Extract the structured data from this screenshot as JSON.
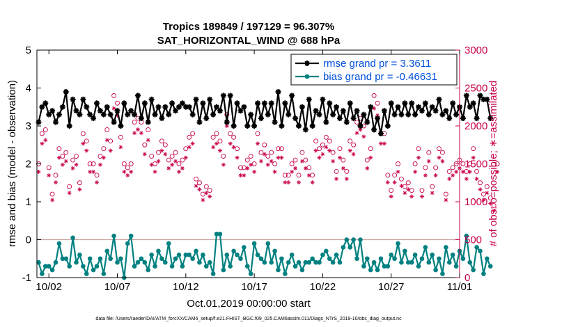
{
  "chart_data": {
    "type": "line",
    "title": "Tropics 189849 / 197129 = 96.307%",
    "subtitle": "SAT_HORIZONTAL_WIND @ 688 hPa",
    "xlabel": "Oct.01,2019 00:00:00 start",
    "ylabel_left": "rmse and bias (model - observation)",
    "ylabel_right": "# of obs: o=possible; ∗=assimilated",
    "footnote": "data file: /Users/raeder/DAI/ATM_forcXX/CAM6_setup/f.e21.FHIST_BGC.f09_025.CAM6assim.011/Diags_NTrS_2019-10/obs_diag_output.nc",
    "xlim": [
      1.125,
      32.0
    ],
    "ylim_left": [
      -1,
      5
    ],
    "ylim_right": [
      0,
      3000
    ],
    "x_ticks": [
      2,
      7,
      12,
      17,
      22,
      27,
      32
    ],
    "x_tick_labels": [
      "10/02",
      "10/07",
      "10/12",
      "10/17",
      "10/22",
      "10/27",
      "11/01"
    ],
    "y_ticks_left": [
      "-1",
      "0",
      "1",
      "2",
      "3",
      "4",
      "5"
    ],
    "y_ticks_right": [
      "0",
      "500",
      "1000",
      "1500",
      "2000",
      "2500",
      "3000"
    ],
    "zero_line": 0,
    "x_start": 1.25,
    "x_step": 0.25,
    "series": [
      {
        "name": "rmse grand pr = 3.3611",
        "axis": "left",
        "color": "#000000",
        "marker": "asterisk",
        "values": [
          3.1,
          3.5,
          3.6,
          3.3,
          3.4,
          3.1,
          3.3,
          3.5,
          3.9,
          3.0,
          3.7,
          3.4,
          3.3,
          3.7,
          3.5,
          3.3,
          3.2,
          3.6,
          3.4,
          3.3,
          3.5,
          3.3,
          3.1,
          3.4,
          3.0,
          3.6,
          3.3,
          3.4,
          3.3,
          3.8,
          3.2,
          3.6,
          3.1,
          3.7,
          3.3,
          3.5,
          3.2,
          3.5,
          3.3,
          3.6,
          3.4,
          3.5,
          3.6,
          3.5,
          3.5,
          3.3,
          3.7,
          3.1,
          3.6,
          3.2,
          3.7,
          3.3,
          3.5,
          3.4,
          3.8,
          3.1,
          3.8,
          3.0,
          3.6,
          3.4,
          3.5,
          3.0,
          3.3,
          3.0,
          3.6,
          3.2,
          3.6,
          3.3,
          3.6,
          3.1,
          3.9,
          3.0,
          3.6,
          3.3,
          3.8,
          3.2,
          3.0,
          3.5,
          2.9,
          3.7,
          3.0,
          3.4,
          3.3,
          3.7,
          3.1,
          3.6,
          3.3,
          3.5,
          3.2,
          3.4,
          3.1,
          3.6,
          3.2,
          3.4,
          3.0,
          3.3,
          3.1,
          3.5,
          2.9,
          3.2,
          2.8,
          3.4,
          3.0,
          3.6,
          3.3,
          3.5,
          3.3,
          3.6,
          3.3,
          3.6,
          3.3,
          3.5,
          3.4,
          3.6,
          3.3,
          3.5,
          3.4,
          3.7,
          3.3,
          3.4,
          3.2,
          3.6,
          3.3,
          3.5,
          3.2,
          3.8,
          3.5,
          3.6,
          3.2,
          3.8,
          3.7,
          3.7,
          3.2
        ]
      },
      {
        "name": "bias grand pr = -0.46631",
        "axis": "left",
        "color": "#008080",
        "marker": "circle",
        "values": [
          -0.6,
          -0.9,
          -0.7,
          -0.7,
          -0.8,
          -0.6,
          -0.1,
          -0.5,
          -0.5,
          -0.7,
          0.05,
          -0.6,
          -0.4,
          -0.7,
          -0.9,
          -0.5,
          -0.8,
          -0.7,
          -0.5,
          -0.9,
          -0.3,
          -0.5,
          0.1,
          -0.6,
          -0.5,
          -1.0,
          -0.1,
          0.1,
          -0.7,
          -0.6,
          -0.5,
          -0.6,
          -0.8,
          -0.4,
          -0.7,
          -0.3,
          -0.5,
          -0.6,
          -0.1,
          -0.7,
          -0.5,
          -0.4,
          -0.7,
          -0.4,
          -0.4,
          -0.5,
          -0.3,
          -0.6,
          -0.4,
          -0.7,
          -0.6,
          -0.9,
          0.15,
          0.15,
          -0.8,
          -0.4,
          -0.7,
          -0.3,
          -0.4,
          -0.5,
          -0.2,
          -0.7,
          -0.9,
          -0.1,
          -0.4,
          -0.5,
          -0.6,
          -0.1,
          -0.6,
          -0.3,
          -0.8,
          -0.5,
          -0.9,
          -0.6,
          -0.4,
          -0.7,
          -0.6,
          -0.8,
          -0.6,
          -0.6,
          -0.5,
          -0.6,
          -0.6,
          -0.4,
          -0.3,
          -0.5,
          -0.6,
          -0.4,
          -0.6,
          -0.2,
          0.0,
          -0.2,
          0.0,
          -0.5,
          0.0,
          -0.7,
          -0.5,
          -0.8,
          -0.6,
          -0.8,
          -0.5,
          -0.7,
          -0.7,
          -0.4,
          -0.5,
          -0.1,
          -0.6,
          -0.3,
          -0.6,
          -0.6,
          -0.4,
          -0.7,
          -0.5,
          -0.2,
          -0.6,
          -0.4,
          -0.8,
          -0.5,
          -0.9,
          -0.2,
          -0.6,
          -0.4,
          -0.7,
          -0.3,
          -0.5,
          0.1,
          -0.6,
          -0.8,
          -0.2,
          -0.3,
          -0.9,
          -0.5,
          -0.7
        ]
      }
    ],
    "obs_counts": {
      "axis": "right",
      "color": "#c8004b",
      "possible_marker": "circle",
      "assimilated_marker": "asterisk",
      "possible": [
        1500,
        1900,
        1950,
        1450,
        1100,
        1350,
        1700,
        1600,
        1650,
        1200,
        1550,
        1600,
        1250,
        1900,
        1800,
        1500,
        1500,
        1350,
        1600,
        1700,
        1950,
        1800,
        2400,
        2300,
        1850,
        1500,
        1450,
        1500,
        2050,
        2100,
        2050,
        1750,
        1950,
        1600,
        1500,
        1650,
        1800,
        1750,
        1550,
        1600,
        1650,
        1500,
        1550,
        1700,
        1850,
        1900,
        1300,
        1250,
        1100,
        1200,
        1150,
        1850,
        1900,
        1800,
        1600,
        2150,
        1900,
        1850,
        1700,
        1450,
        1450,
        1550,
        1600,
        1500,
        1900,
        1650,
        1750,
        1600,
        1650,
        1500,
        1700,
        1700,
        1350,
        1350,
        1500,
        1550,
        1350,
        1650,
        1550,
        1450,
        1350,
        1800,
        1700,
        1750,
        1850,
        1800,
        1650,
        1400,
        1700,
        1550,
        1400,
        1800,
        1750,
        2050,
        2100,
        2000,
        1550,
        1700,
        2400,
        2300,
        1900,
        1900,
        1350,
        1150,
        1350,
        1500,
        1300,
        1200,
        1250,
        1150,
        1500,
        1700,
        1150,
        1450,
        1650,
        1200,
        1450,
        1700,
        1650,
        1100,
        1400,
        1450,
        1500,
        1550,
        1500,
        1400,
        1500,
        1700,
        1400,
        1250,
        1100,
        1200,
        1050,
        950,
        1500
      ]
    },
    "legend": {
      "location": "top-right",
      "entries": [
        {
          "label": "rmse grand pr = 3.3611",
          "color": "#000000",
          "text_color": "#0050dc"
        },
        {
          "label": "bias grand pr = -0.46631",
          "color": "#008080",
          "text_color": "#0050dc"
        }
      ]
    },
    "colors": {
      "axes": "#000000",
      "right_axis": "#c8004b",
      "zero_line": "#c8a0a0",
      "legend_text": "#0050dc"
    }
  }
}
